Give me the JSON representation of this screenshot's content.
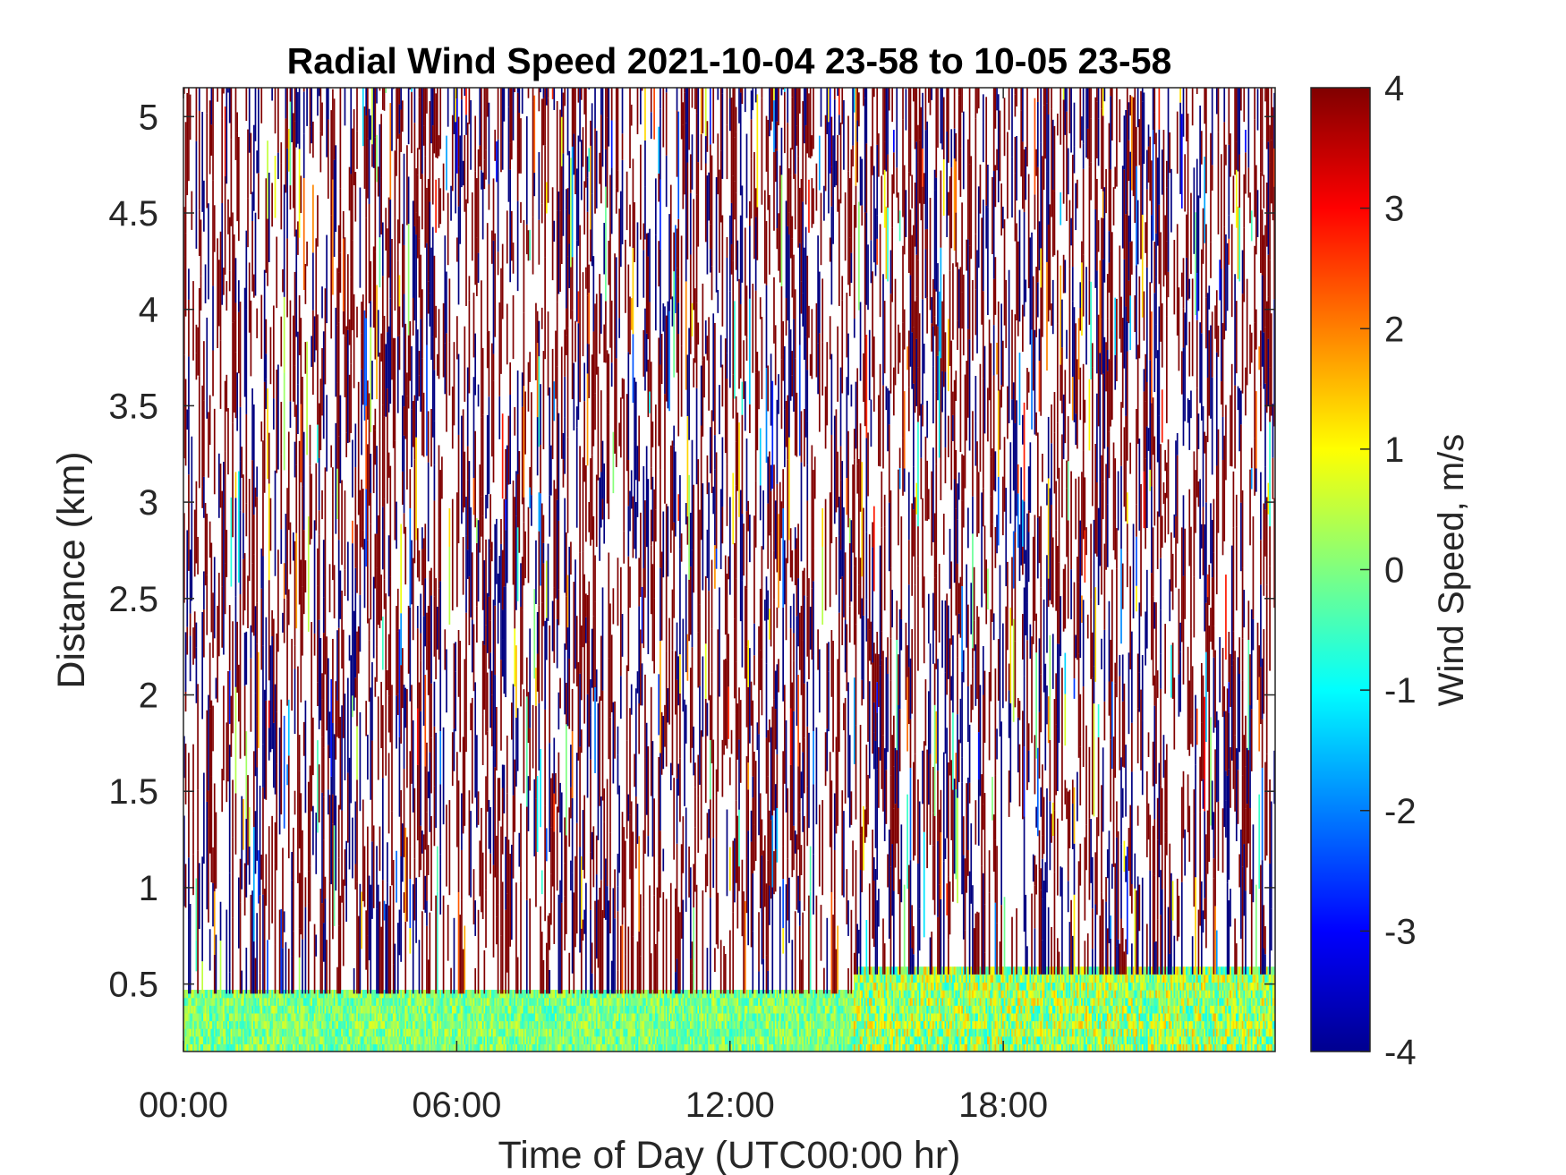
{
  "chart_data": {
    "type": "heatmap",
    "title": "Radial Wind Speed 2021-10-04 23-58 to 10-05 23-58",
    "xlabel": "Time of Day (UTC00:00 hr)",
    "ylabel": "Distance (km)",
    "colorbar_label": "Wind Speed, m/s",
    "colormap": "jet",
    "x_ticks": [
      {
        "value": 0,
        "label": "00:00"
      },
      {
        "value": 6,
        "label": "06:00"
      },
      {
        "value": 12,
        "label": "12:00"
      },
      {
        "value": 18,
        "label": "18:00"
      }
    ],
    "y_ticks": [
      {
        "value": 0.5,
        "label": "0.5"
      },
      {
        "value": 1,
        "label": "1"
      },
      {
        "value": 1.5,
        "label": "1.5"
      },
      {
        "value": 2,
        "label": "2"
      },
      {
        "value": 2.5,
        "label": "2.5"
      },
      {
        "value": 3,
        "label": "3"
      },
      {
        "value": 3.5,
        "label": "3.5"
      },
      {
        "value": 4,
        "label": "4"
      },
      {
        "value": 4.5,
        "label": "4.5"
      },
      {
        "value": 5,
        "label": "5"
      }
    ],
    "colorbar_ticks": [
      {
        "value": -4,
        "label": "-4"
      },
      {
        "value": -3,
        "label": "-3"
      },
      {
        "value": -2,
        "label": "-2"
      },
      {
        "value": -1,
        "label": "-1"
      },
      {
        "value": 0,
        "label": "0"
      },
      {
        "value": 1,
        "label": "1"
      },
      {
        "value": 2,
        "label": "2"
      },
      {
        "value": 3,
        "label": "3"
      },
      {
        "value": 4,
        "label": "4"
      }
    ],
    "xlim": [
      0,
      23.97
    ],
    "ylim": [
      0.15,
      5.15
    ],
    "clim": [
      -4,
      4
    ],
    "near_range_layer": [
      {
        "t_start": 0,
        "t_end": 14.7,
        "top_km": 0.45,
        "speed_range": [
          -0.8,
          0.8
        ]
      },
      {
        "t_start": 14.7,
        "t_end": 23.97,
        "top_km": 0.55,
        "speed_range": [
          -1.0,
          1.6
        ]
      }
    ],
    "noise_region": {
      "from_km": 0.45,
      "to_km": 5.15,
      "speed_values": [
        -4,
        4
      ]
    }
  }
}
